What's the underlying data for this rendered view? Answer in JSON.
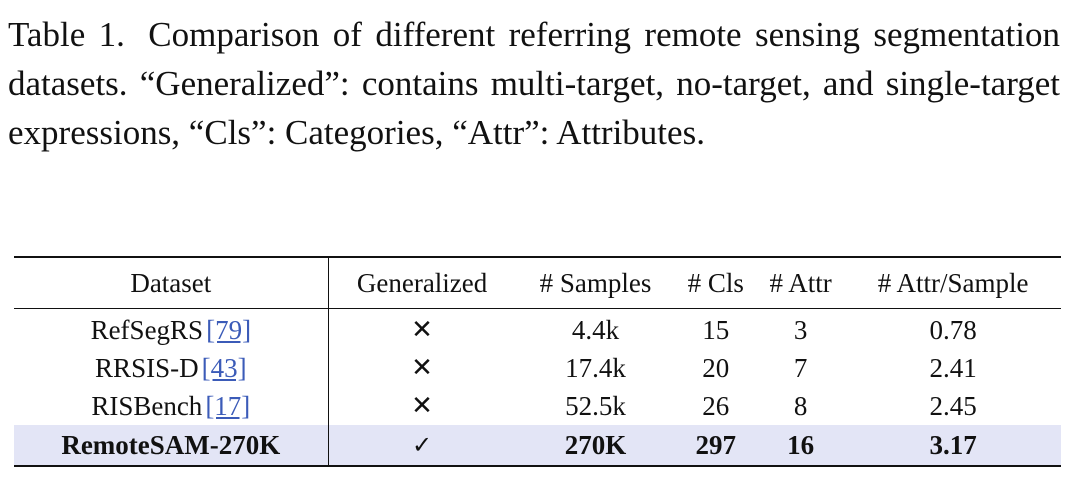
{
  "caption": {
    "label": "Table 1.",
    "text": "Comparison of different referring remote sensing segmentation datasets. “Generalized”: contains multi-target, no-target, and single-target expressions, “Cls”: Categories, “Attr”: Attributes."
  },
  "table": {
    "headers": [
      "Dataset",
      "Generalized",
      "# Samples",
      "# Cls",
      "# Attr",
      "# Attr/Sample"
    ],
    "rows": [
      {
        "dataset": "RefSegRS",
        "ref": "[79]",
        "generalized": "✕",
        "samples": "4.4k",
        "cls": "15",
        "attr": "3",
        "attr_per_sample": "0.78"
      },
      {
        "dataset": "RRSIS-D",
        "ref": "[43]",
        "generalized": "✕",
        "samples": "17.4k",
        "cls": "20",
        "attr": "7",
        "attr_per_sample": "2.41"
      },
      {
        "dataset": "RISBench",
        "ref": "[17]",
        "generalized": "✕",
        "samples": "52.5k",
        "cls": "26",
        "attr": "8",
        "attr_per_sample": "2.45"
      },
      {
        "dataset": "RemoteSAM-270K",
        "ref": "",
        "generalized": "✓",
        "samples": "270K",
        "cls": "297",
        "attr": "16",
        "attr_per_sample": "3.17"
      }
    ]
  }
}
